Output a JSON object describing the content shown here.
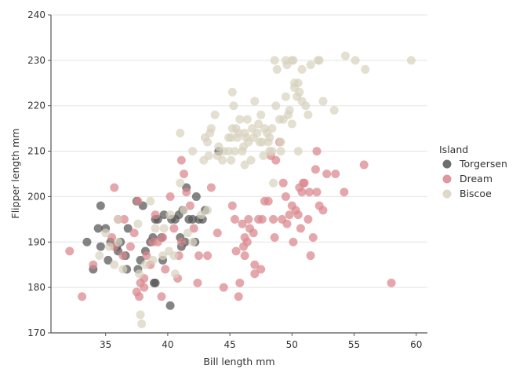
{
  "chart_data": {
    "type": "scatter",
    "title": "",
    "xlabel": "Bill length mm",
    "ylabel": "Flipper length mm",
    "xlim": [
      30.6,
      60.9
    ],
    "ylim": [
      170,
      240
    ],
    "xticks": [
      35,
      40,
      45,
      50,
      55,
      60
    ],
    "yticks": [
      170,
      180,
      190,
      200,
      210,
      220,
      230,
      240
    ],
    "grid": "horizontal",
    "legend": {
      "title": "Island",
      "placement": "right"
    },
    "series": [
      {
        "name": "Torgersen",
        "color": "#555555",
        "points": [
          [
            33.5,
            190
          ],
          [
            34,
            184
          ],
          [
            34.4,
            193
          ],
          [
            34.6,
            189
          ],
          [
            34.6,
            198
          ],
          [
            35,
            193
          ],
          [
            35.2,
            186
          ],
          [
            35.4,
            190
          ],
          [
            35.9,
            189
          ],
          [
            36.2,
            190
          ],
          [
            36,
            188
          ],
          [
            36.6,
            187
          ],
          [
            36.8,
            193
          ],
          [
            36.7,
            184
          ],
          [
            37.5,
            199
          ],
          [
            37.6,
            184
          ],
          [
            37.8,
            186
          ],
          [
            38,
            198
          ],
          [
            38.2,
            188
          ],
          [
            38.6,
            190
          ],
          [
            38.8,
            191
          ],
          [
            38.9,
            181
          ],
          [
            39,
            181
          ],
          [
            39,
            195
          ],
          [
            39.2,
            195
          ],
          [
            39.5,
            191
          ],
          [
            39.6,
            186
          ],
          [
            39.7,
            196
          ],
          [
            40.2,
            176
          ],
          [
            40.3,
            195
          ],
          [
            40.6,
            195
          ],
          [
            41,
            191
          ],
          [
            41.1,
            189
          ],
          [
            41.4,
            190
          ],
          [
            41.5,
            202
          ],
          [
            41.7,
            195
          ],
          [
            42,
            195
          ],
          [
            42.2,
            190
          ],
          [
            42.5,
            195
          ],
          [
            42.8,
            195
          ],
          [
            43,
            197
          ],
          [
            44.1,
            210
          ],
          [
            42.3,
            200
          ],
          [
            41.2,
            197
          ],
          [
            40.9,
            196
          ]
        ]
      },
      {
        "name": "Dream",
        "color": "#d9868c",
        "points": [
          [
            32.1,
            188
          ],
          [
            33.1,
            178
          ],
          [
            34,
            185
          ],
          [
            35.7,
            202
          ],
          [
            35.5,
            191
          ],
          [
            35.7,
            189
          ],
          [
            36,
            195
          ],
          [
            36.5,
            195
          ],
          [
            36.4,
            187
          ],
          [
            37,
            189
          ],
          [
            37.3,
            192
          ],
          [
            37.5,
            179
          ],
          [
            37.7,
            178
          ],
          [
            37.8,
            181
          ],
          [
            37.6,
            199
          ],
          [
            38.1,
            182
          ],
          [
            38.1,
            180
          ],
          [
            38.3,
            187
          ],
          [
            38.6,
            185
          ],
          [
            38.8,
            190
          ],
          [
            39.2,
            190
          ],
          [
            39.5,
            178
          ],
          [
            39.6,
            191
          ],
          [
            39.8,
            184
          ],
          [
            40.2,
            200
          ],
          [
            40.5,
            193
          ],
          [
            40.8,
            182
          ],
          [
            41.1,
            208
          ],
          [
            41.1,
            190
          ],
          [
            41.3,
            205
          ],
          [
            41.5,
            201
          ],
          [
            41.8,
            198
          ],
          [
            42.1,
            193
          ],
          [
            42.5,
            187
          ],
          [
            43.2,
            187
          ],
          [
            43.5,
            202
          ],
          [
            44,
            192
          ],
          [
            44.5,
            180
          ],
          [
            40.9,
            187
          ],
          [
            39,
            196
          ],
          [
            42.4,
            181
          ],
          [
            45.2,
            198
          ],
          [
            45.4,
            195
          ],
          [
            45.5,
            188
          ],
          [
            45.7,
            178
          ],
          [
            46,
            194
          ],
          [
            46.1,
            189
          ],
          [
            46.2,
            191
          ],
          [
            46.4,
            190
          ],
          [
            46.6,
            193
          ],
          [
            46.9,
            192
          ],
          [
            47,
            185
          ],
          [
            47.3,
            195
          ],
          [
            47.6,
            195
          ],
          [
            47.8,
            199
          ],
          [
            48.1,
            199
          ],
          [
            48.6,
            191
          ],
          [
            49,
            212
          ],
          [
            49.2,
            195
          ],
          [
            49.6,
            194
          ],
          [
            49.8,
            196
          ],
          [
            50,
            198
          ],
          [
            50.3,
            197
          ],
          [
            50.5,
            196
          ],
          [
            50.6,
            202
          ],
          [
            50.8,
            201
          ],
          [
            51,
            203
          ],
          [
            51.3,
            195
          ],
          [
            51.5,
            187
          ],
          [
            51.9,
            206
          ],
          [
            52,
            201
          ],
          [
            52.2,
            198
          ],
          [
            52,
            210
          ],
          [
            52.5,
            197
          ],
          [
            52.8,
            205
          ],
          [
            53.5,
            205
          ],
          [
            54.2,
            201
          ],
          [
            55.8,
            207
          ],
          [
            58,
            181
          ],
          [
            46.2,
            187
          ],
          [
            45.8,
            181
          ],
          [
            47.5,
            184
          ],
          [
            50.9,
            203
          ],
          [
            49.5,
            200
          ],
          [
            51.7,
            191
          ],
          [
            50.1,
            190
          ],
          [
            48.7,
            208
          ],
          [
            48.5,
            195
          ],
          [
            49.3,
            203
          ],
          [
            50.7,
            193
          ],
          [
            51.4,
            201
          ],
          [
            46.5,
            195
          ],
          [
            47,
            183
          ],
          [
            48.3,
            209
          ]
        ]
      },
      {
        "name": "Biscoe",
        "color": "#d8d2bf",
        "points": [
          [
            34.5,
            187
          ],
          [
            35,
            192
          ],
          [
            35.3,
            189
          ],
          [
            35.7,
            185
          ],
          [
            36,
            190
          ],
          [
            36.4,
            184
          ],
          [
            37.7,
            183
          ],
          [
            37.8,
            174
          ],
          [
            37.9,
            172
          ],
          [
            38.2,
            185
          ],
          [
            38.6,
            199
          ],
          [
            39,
            193
          ],
          [
            39.6,
            187
          ],
          [
            40.1,
            188
          ],
          [
            40.5,
            187
          ],
          [
            41,
            203
          ],
          [
            41.3,
            197
          ],
          [
            41.6,
            192
          ],
          [
            42,
            190
          ],
          [
            42.7,
            196
          ],
          [
            43.2,
            197
          ],
          [
            37.6,
            194
          ],
          [
            38.8,
            186
          ],
          [
            40.6,
            183
          ],
          [
            41,
            214
          ],
          [
            42,
            210
          ],
          [
            43,
            213
          ],
          [
            40.2,
            196
          ],
          [
            39.7,
            193
          ],
          [
            36,
            195
          ],
          [
            42.9,
            208
          ],
          [
            43.3,
            209
          ],
          [
            43.5,
            215
          ],
          [
            43.8,
            218
          ],
          [
            44,
            209
          ],
          [
            44.4,
            208
          ],
          [
            44.9,
            210
          ],
          [
            45.1,
            213
          ],
          [
            45.2,
            215
          ],
          [
            45.3,
            220
          ],
          [
            45.4,
            210
          ],
          [
            45.5,
            215
          ],
          [
            45.7,
            214
          ],
          [
            45.8,
            217
          ],
          [
            46,
            210
          ],
          [
            46.1,
            211
          ],
          [
            46.2,
            214
          ],
          [
            46.4,
            217
          ],
          [
            46.5,
            212
          ],
          [
            46.8,
            215
          ],
          [
            47,
            221
          ],
          [
            47.2,
            214
          ],
          [
            47.4,
            212
          ],
          [
            47.5,
            218
          ],
          [
            47.7,
            209
          ],
          [
            48,
            214
          ],
          [
            48.2,
            210
          ],
          [
            48.4,
            215
          ],
          [
            48.7,
            220
          ],
          [
            49,
            217
          ],
          [
            49.1,
            212
          ],
          [
            49.3,
            217
          ],
          [
            49.5,
            222
          ],
          [
            49.8,
            219
          ],
          [
            50,
            216
          ],
          [
            50.2,
            224
          ],
          [
            50.5,
            225
          ],
          [
            50.8,
            228
          ],
          [
            51.1,
            220
          ],
          [
            51.5,
            229
          ],
          [
            52.1,
            230
          ],
          [
            52.5,
            221
          ],
          [
            53.4,
            219
          ],
          [
            54.3,
            231
          ],
          [
            55.1,
            230
          ],
          [
            55.9,
            228
          ],
          [
            59.6,
            230
          ],
          [
            48.6,
            230
          ],
          [
            48.8,
            228
          ],
          [
            49.5,
            230
          ],
          [
            49.6,
            229
          ],
          [
            50,
            230
          ],
          [
            50.1,
            230
          ],
          [
            50.2,
            225
          ],
          [
            50.4,
            222
          ],
          [
            50.6,
            223
          ],
          [
            50.8,
            221
          ],
          [
            51.3,
            218
          ],
          [
            52.2,
            230
          ],
          [
            46.2,
            207
          ],
          [
            46.7,
            208
          ],
          [
            47.6,
            212
          ],
          [
            48.1,
            212
          ],
          [
            45.1,
            208
          ],
          [
            44.5,
            210
          ],
          [
            45.6,
            213
          ],
          [
            46.9,
            213
          ],
          [
            44.1,
            211
          ],
          [
            43.4,
            214
          ],
          [
            43.2,
            212
          ],
          [
            47.3,
            216
          ],
          [
            48.2,
            213
          ],
          [
            49.7,
            218
          ],
          [
            45.2,
            223
          ],
          [
            50.5,
            210
          ],
          [
            48.5,
            203
          ],
          [
            48.4,
            210
          ],
          [
            49.1,
            210
          ],
          [
            44.9,
            213
          ],
          [
            47.8,
            215
          ],
          [
            46.3,
            213
          ]
        ]
      }
    ]
  }
}
